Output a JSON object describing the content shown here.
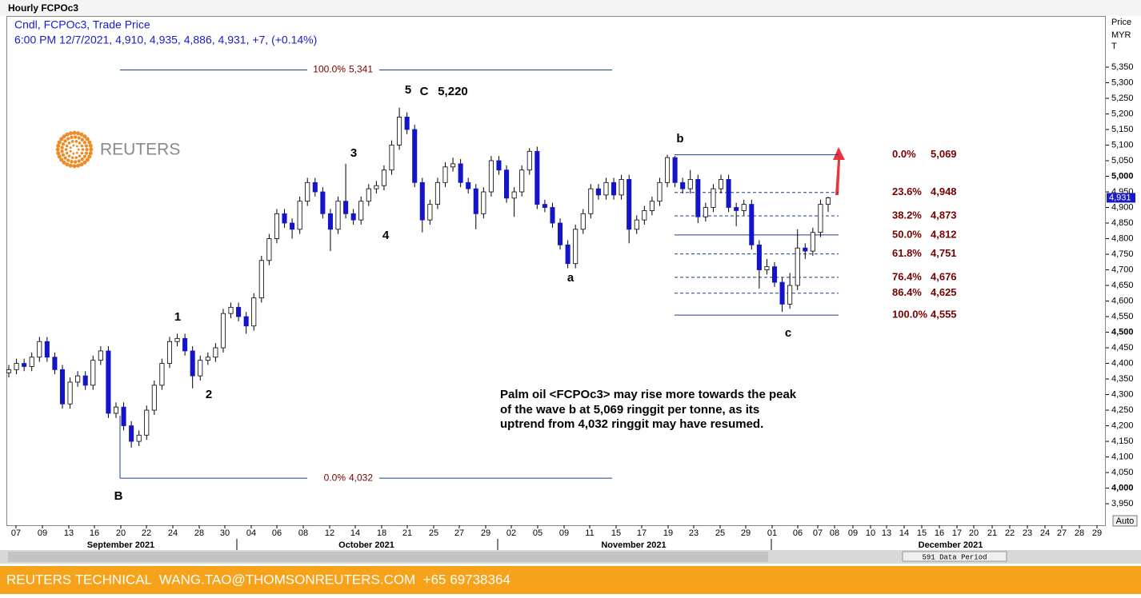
{
  "chart_data": {
    "type": "candlestick",
    "title": "Hourly FCPOc3",
    "subtitle": [
      "Cndl, FCPOc3, Trade Price",
      "6:00 PM 12/7/2021, 4,910, 4,935, 4,886, 4,931, +7, (+0.14%)"
    ],
    "axis_label": [
      "Price",
      "MYR",
      "T"
    ],
    "logo": "REUTERS",
    "up_color": "#ffffff",
    "down_color": "#1414c8",
    "ylim": [
      3881,
      5514
    ],
    "yticks": [
      {
        "value": 3950,
        "label": "3,950"
      },
      {
        "value": 4000,
        "label": "4,000"
      },
      {
        "value": 4050,
        "label": "4,050"
      },
      {
        "value": 4100,
        "label": "4,100"
      },
      {
        "value": 4150,
        "label": "4,150"
      },
      {
        "value": 4200,
        "label": "4,200"
      },
      {
        "value": 4250,
        "label": "4,250"
      },
      {
        "value": 4300,
        "label": "4,300"
      },
      {
        "value": 4350,
        "label": "4,350"
      },
      {
        "value": 4400,
        "label": "4,400"
      },
      {
        "value": 4450,
        "label": "4,450"
      },
      {
        "value": 4500,
        "label": "4,500"
      },
      {
        "value": 4550,
        "label": "4,550"
      },
      {
        "value": 4600,
        "label": "4,600"
      },
      {
        "value": 4650,
        "label": "4,650"
      },
      {
        "value": 4700,
        "label": "4,700"
      },
      {
        "value": 4750,
        "label": "4,750"
      },
      {
        "value": 4800,
        "label": "4,800"
      },
      {
        "value": 4850,
        "label": "4,850"
      },
      {
        "value": 4900,
        "label": "4,900"
      },
      {
        "value": 4950,
        "label": "4,950"
      },
      {
        "value": 5000,
        "label": "5,000"
      },
      {
        "value": 5050,
        "label": "5,050"
      },
      {
        "value": 5100,
        "label": "5,100"
      },
      {
        "value": 5150,
        "label": "5,150"
      },
      {
        "value": 5200,
        "label": "5,200"
      },
      {
        "value": 5250,
        "label": "5,250"
      },
      {
        "value": 5300,
        "label": "5,300"
      },
      {
        "value": 5350,
        "label": "5,350"
      }
    ],
    "last_price": {
      "value": 4931,
      "label": "4,931"
    },
    "candles": [
      [
        4370,
        4395,
        4355,
        4380
      ],
      [
        4380,
        4415,
        4365,
        4400
      ],
      [
        4400,
        4415,
        4375,
        4390
      ],
      [
        4390,
        4435,
        4375,
        4420
      ],
      [
        4420,
        4485,
        4405,
        4470
      ],
      [
        4470,
        4485,
        4405,
        4420
      ],
      [
        4420,
        4435,
        4365,
        4380
      ],
      [
        4380,
        4395,
        4255,
        4270
      ],
      [
        4270,
        4355,
        4255,
        4340
      ],
      [
        4340,
        4375,
        4325,
        4360
      ],
      [
        4360,
        4375,
        4315,
        4330
      ],
      [
        4330,
        4425,
        4315,
        4410
      ],
      [
        4410,
        4455,
        4395,
        4440
      ],
      [
        4440,
        4455,
        4225,
        4240
      ],
      [
        4240,
        4275,
        4225,
        4260
      ],
      [
        4260,
        4275,
        4185,
        4200
      ],
      [
        4200,
        4215,
        4130,
        4150
      ],
      [
        4150,
        4185,
        4135,
        4170
      ],
      [
        4170,
        4265,
        4155,
        4250
      ],
      [
        4250,
        4345,
        4235,
        4330
      ],
      [
        4330,
        4415,
        4315,
        4400
      ],
      [
        4400,
        4485,
        4385,
        4470
      ],
      [
        4470,
        4495,
        4455,
        4480
      ],
      [
        4480,
        4495,
        4425,
        4440
      ],
      [
        4440,
        4455,
        4320,
        4360
      ],
      [
        4360,
        4425,
        4345,
        4410
      ],
      [
        4410,
        4435,
        4395,
        4420
      ],
      [
        4420,
        4465,
        4405,
        4450
      ],
      [
        4450,
        4575,
        4435,
        4560
      ],
      [
        4560,
        4595,
        4545,
        4580
      ],
      [
        4580,
        4595,
        4535,
        4550
      ],
      [
        4550,
        4565,
        4495,
        4520
      ],
      [
        4520,
        4625,
        4505,
        4610
      ],
      [
        4610,
        4745,
        4595,
        4730
      ],
      [
        4730,
        4815,
        4715,
        4800
      ],
      [
        4800,
        4895,
        4785,
        4880
      ],
      [
        4880,
        4895,
        4835,
        4850
      ],
      [
        4850,
        4865,
        4800,
        4830
      ],
      [
        4830,
        4935,
        4815,
        4920
      ],
      [
        4920,
        4995,
        4905,
        4980
      ],
      [
        4980,
        4995,
        4935,
        4950
      ],
      [
        4950,
        4965,
        4865,
        4880
      ],
      [
        4880,
        4895,
        4760,
        4830
      ],
      [
        4830,
        4935,
        4815,
        4920
      ],
      [
        4920,
        5040,
        4865,
        4880
      ],
      [
        4880,
        4895,
        4845,
        4860
      ],
      [
        4860,
        4935,
        4845,
        4920
      ],
      [
        4920,
        4975,
        4905,
        4960
      ],
      [
        4960,
        4985,
        4945,
        4970
      ],
      [
        4970,
        5035,
        4955,
        5020
      ],
      [
        5020,
        5115,
        5005,
        5100
      ],
      [
        5100,
        5220,
        5085,
        5190
      ],
      [
        5190,
        5205,
        5135,
        5150
      ],
      [
        5150,
        5165,
        4965,
        4980
      ],
      [
        4980,
        4995,
        4820,
        4860
      ],
      [
        4860,
        4925,
        4845,
        4910
      ],
      [
        4910,
        4995,
        4895,
        4980
      ],
      [
        4980,
        5045,
        4965,
        5030
      ],
      [
        5030,
        5060,
        5015,
        5040
      ],
      [
        5040,
        5055,
        4965,
        4980
      ],
      [
        4980,
        4995,
        4945,
        4960
      ],
      [
        4960,
        4975,
        4830,
        4880
      ],
      [
        4880,
        4965,
        4865,
        4950
      ],
      [
        4950,
        5065,
        4935,
        5050
      ],
      [
        5050,
        5065,
        5005,
        5020
      ],
      [
        5020,
        5035,
        4915,
        4930
      ],
      [
        4930,
        4965,
        4870,
        4950
      ],
      [
        4950,
        5035,
        4935,
        5020
      ],
      [
        5020,
        5090,
        5005,
        5080
      ],
      [
        5080,
        5095,
        4895,
        4910
      ],
      [
        4910,
        4925,
        4885,
        4900
      ],
      [
        4900,
        4915,
        4835,
        4850
      ],
      [
        4850,
        4865,
        4765,
        4780
      ],
      [
        4780,
        4795,
        4705,
        4720
      ],
      [
        4720,
        4845,
        4705,
        4830
      ],
      [
        4830,
        4895,
        4815,
        4880
      ],
      [
        4880,
        4975,
        4865,
        4960
      ],
      [
        4960,
        4975,
        4925,
        4940
      ],
      [
        4940,
        4995,
        4925,
        4980
      ],
      [
        4980,
        4995,
        4925,
        4940
      ],
      [
        4940,
        5005,
        4925,
        4990
      ],
      [
        4990,
        5005,
        4785,
        4830
      ],
      [
        4830,
        4875,
        4815,
        4860
      ],
      [
        4860,
        4905,
        4845,
        4890
      ],
      [
        4890,
        4935,
        4875,
        4920
      ],
      [
        4920,
        4995,
        4905,
        4980
      ],
      [
        4980,
        5069,
        4965,
        5060
      ],
      [
        5060,
        5065,
        4965,
        4980
      ],
      [
        4980,
        4995,
        4945,
        4960
      ],
      [
        4960,
        5020,
        4945,
        4990
      ],
      [
        4990,
        5005,
        4850,
        4870
      ],
      [
        4870,
        4915,
        4855,
        4900
      ],
      [
        4900,
        4975,
        4885,
        4960
      ],
      [
        4960,
        5005,
        4945,
        4990
      ],
      [
        4990,
        5005,
        4885,
        4900
      ],
      [
        4900,
        4915,
        4840,
        4890
      ],
      [
        4890,
        4925,
        4875,
        4910
      ],
      [
        4910,
        4925,
        4765,
        4780
      ],
      [
        4780,
        4795,
        4640,
        4700
      ],
      [
        4700,
        4735,
        4685,
        4710
      ],
      [
        4710,
        4725,
        4645,
        4660
      ],
      [
        4660,
        4675,
        4565,
        4590
      ],
      [
        4590,
        4690,
        4575,
        4650
      ],
      [
        4650,
        4830,
        4635,
        4770
      ],
      [
        4770,
        4785,
        4735,
        4760
      ],
      [
        4760,
        4835,
        4745,
        4820
      ],
      [
        4820,
        4925,
        4805,
        4910
      ],
      [
        4910,
        4935,
        4886,
        4931
      ]
    ],
    "fib_left": [
      {
        "pct": "100.0%",
        "value": 5341,
        "label": "5,341"
      },
      {
        "pct": "0.0%",
        "value": 4032,
        "label": "4,032"
      }
    ],
    "fib_right": [
      {
        "pct": "0.0%",
        "value": 5069,
        "label": "5,069",
        "style": "solid"
      },
      {
        "pct": "23.6%",
        "value": 4948,
        "label": "4,948",
        "style": "dashed"
      },
      {
        "pct": "38.2%",
        "value": 4873,
        "label": "4,873",
        "style": "dashed"
      },
      {
        "pct": "50.0%",
        "value": 4812,
        "label": "4,812",
        "style": "solid"
      },
      {
        "pct": "61.8%",
        "value": 4751,
        "label": "4,751",
        "style": "dashed"
      },
      {
        "pct": "76.4%",
        "value": 4676,
        "label": "4,676",
        "style": "dashed"
      },
      {
        "pct": "86.4%",
        "value": 4625,
        "label": "4,625",
        "style": "dashed"
      },
      {
        "pct": "100.0%",
        "value": 4555,
        "label": "4,555",
        "style": "solid"
      }
    ],
    "wave_labels": [
      "1",
      "2",
      "3",
      "4",
      "5",
      "C",
      "5,220",
      "B",
      "a",
      "b",
      "c"
    ],
    "annotation": [
      "Palm oil <FCPOc3> may rise more towards the peak",
      "of the wave b at 5,069 ringgit per tonne, as its",
      "uptrend from 4,032 ringgit may have resumed."
    ],
    "x_labels": [
      "07",
      "09",
      "13",
      "16",
      "20",
      "22",
      "24",
      "28",
      "30",
      "04",
      "06",
      "08",
      "12",
      "14",
      "18",
      "21",
      "25",
      "27",
      "29",
      "02",
      "05",
      "09",
      "11",
      "15",
      "17",
      "19",
      "23",
      "25",
      "29",
      "01",
      "06",
      "07",
      "08",
      "09",
      "10",
      "13",
      "14",
      "15",
      "16",
      "17",
      "20",
      "21",
      "22",
      "23",
      "24",
      "27",
      "28",
      "29"
    ],
    "months": [
      "September 2021",
      "October 2021",
      "November 2021",
      "December 2021"
    ],
    "data_period": "591 Data Period",
    "scale_mode": "Auto",
    "footer": "REUTERS TECHNICAL  WANG.TAO@THOMSONREUTERS.COM  +65 69738364"
  }
}
